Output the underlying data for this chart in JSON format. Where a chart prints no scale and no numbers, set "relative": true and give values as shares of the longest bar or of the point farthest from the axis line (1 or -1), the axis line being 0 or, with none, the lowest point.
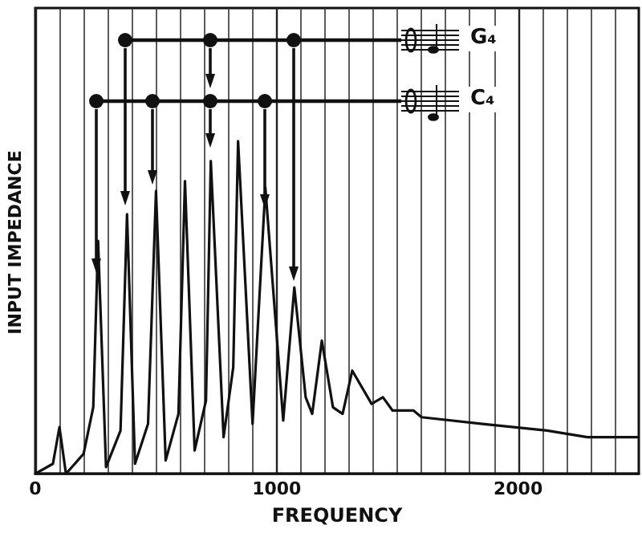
{
  "chart_data": {
    "type": "line",
    "xlabel": "FREQUENCY",
    "ylabel": "INPUT IMPEDANCE",
    "relative": true,
    "xlim": [
      0,
      2500
    ],
    "xticks": [
      0,
      1000,
      2000
    ],
    "grid": "x",
    "annotations": [
      "G₄",
      "C₄"
    ],
    "series": [
      {
        "color": "#111111",
        "x": [
          0,
          73,
          100,
          127,
          200,
          240,
          260,
          293,
          353,
          380,
          413,
          467,
          500,
          540,
          593,
          620,
          660,
          707,
          727,
          780,
          820,
          840,
          900,
          953,
          1027,
          1073,
          1120,
          1147,
          1187,
          1233,
          1273,
          1313,
          1393,
          1440,
          1480,
          1567,
          1600,
          1853,
          2120,
          2287,
          2500
        ],
        "values": [
          0,
          0.03,
          0.14,
          0,
          0.06,
          0.2,
          0.7,
          0.02,
          0.13,
          0.78,
          0.03,
          0.15,
          0.85,
          0.04,
          0.18,
          0.88,
          0.07,
          0.22,
          0.94,
          0.11,
          0.32,
          1,
          0.15,
          0.86,
          0.16,
          0.56,
          0.23,
          0.18,
          0.4,
          0.2,
          0.18,
          0.31,
          0.21,
          0.23,
          0.19,
          0.19,
          0.17,
          0.15,
          0.13,
          0.11,
          0.11
        ]
      }
    ]
  }
}
